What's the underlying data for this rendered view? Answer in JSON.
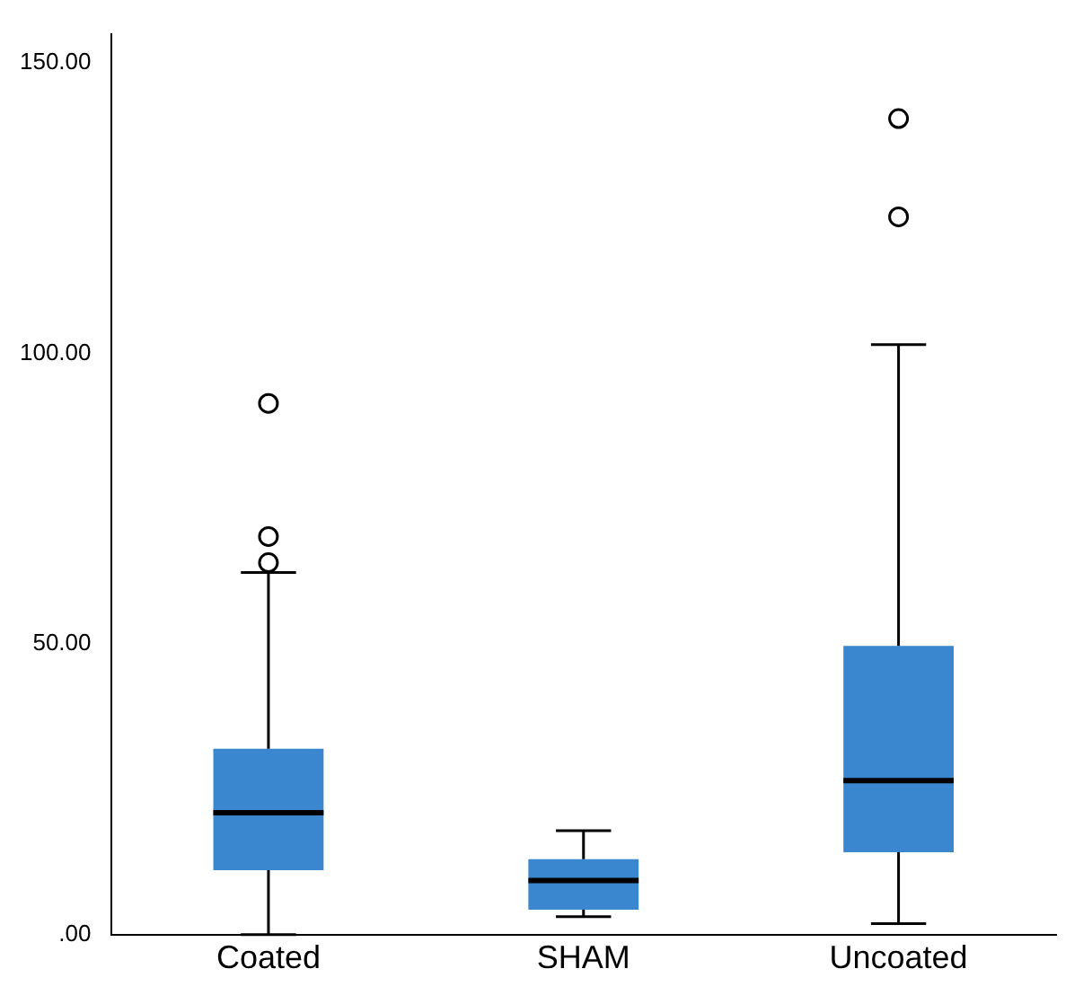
{
  "chart_data": {
    "type": "box",
    "categories": [
      "Coated",
      "SHAM",
      "Uncoated"
    ],
    "color": "#3a87cf",
    "boxes": [
      {
        "low": 0,
        "q1": 11.1,
        "median": 21,
        "q3": 32,
        "high": 62.3,
        "outliers": [
          64,
          68.5,
          91.4
        ]
      },
      {
        "low": 3.1,
        "q1": 4.3,
        "median": 9.3,
        "q3": 13,
        "high": 17.9
      },
      {
        "low": 1.9,
        "q1": 14.2,
        "median": 26.5,
        "q3": 49.7,
        "high": 101.5,
        "outliers": [
          123.5,
          140.4
        ]
      }
    ],
    "ylim": [
      0,
      155
    ],
    "yticks": [
      {
        "value": 0,
        "label": ".00"
      },
      {
        "value": 50,
        "label": "50.00"
      },
      {
        "value": 100,
        "label": "100.00"
      },
      {
        "value": 150,
        "label": "150.00"
      }
    ],
    "grid": false,
    "legend": false
  }
}
